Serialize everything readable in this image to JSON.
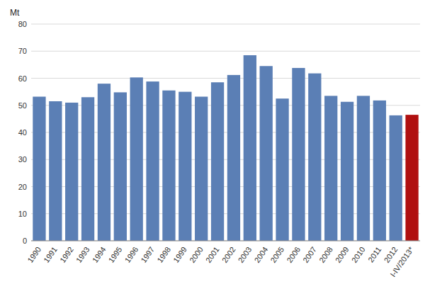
{
  "chart_data": {
    "type": "bar",
    "y_label": "Mt",
    "categories": [
      "1990",
      "1991",
      "1992",
      "1993",
      "1994",
      "1995",
      "1996",
      "1997",
      "1998",
      "1999",
      "2000",
      "2001",
      "2002",
      "2003",
      "2004",
      "2005",
      "2006",
      "2007",
      "2008",
      "2009",
      "2010",
      "2011",
      "2012",
      "I-IV/2013*"
    ],
    "values": [
      53.2,
      51.5,
      51.0,
      53.0,
      58.0,
      54.8,
      60.3,
      58.8,
      55.5,
      55.0,
      53.2,
      58.5,
      61.2,
      68.5,
      64.5,
      52.5,
      63.8,
      61.8,
      53.5,
      51.3,
      53.5,
      51.8,
      46.3,
      46.5
    ],
    "colors": [
      "#5b7fb5",
      "#5b7fb5",
      "#5b7fb5",
      "#5b7fb5",
      "#5b7fb5",
      "#5b7fb5",
      "#5b7fb5",
      "#5b7fb5",
      "#5b7fb5",
      "#5b7fb5",
      "#5b7fb5",
      "#5b7fb5",
      "#5b7fb5",
      "#5b7fb5",
      "#5b7fb5",
      "#5b7fb5",
      "#5b7fb5",
      "#5b7fb5",
      "#5b7fb5",
      "#5b7fb5",
      "#5b7fb5",
      "#5b7fb5",
      "#5b7fb5",
      "#b01010"
    ],
    "ylim": [
      0,
      80
    ],
    "yticks": [
      0,
      10,
      20,
      30,
      40,
      50,
      60,
      70,
      80
    ],
    "grid": true
  }
}
